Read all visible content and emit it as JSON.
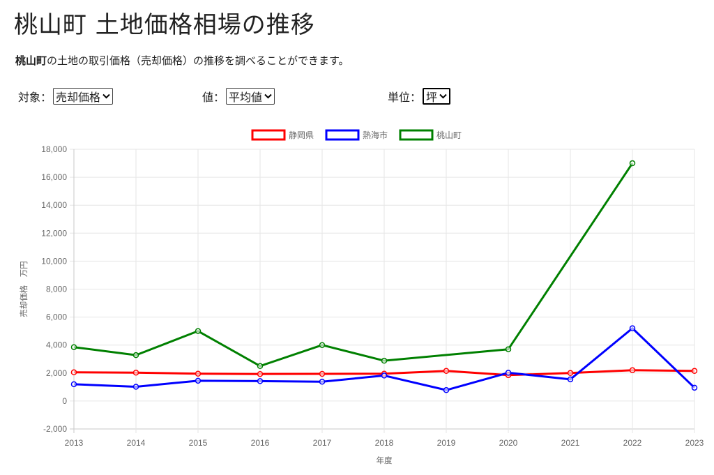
{
  "page": {
    "title": "桃山町 土地価格相場の推移",
    "intro_bold": "桃山町",
    "intro_rest": "の土地の取引価格（売却価格）の推移を調べることができます。"
  },
  "controls": {
    "target": {
      "label": "対象：",
      "value": "売却価格"
    },
    "value": {
      "label": "値：",
      "value": "平均値"
    },
    "unit": {
      "label": "単位：",
      "value": "坪"
    }
  },
  "chart_data": {
    "type": "line",
    "x": [
      "2013",
      "2014",
      "2015",
      "2016",
      "2017",
      "2018",
      "2019",
      "2020",
      "2021",
      "2022",
      "2023"
    ],
    "xlabel": "年度",
    "ylabel": "売却価格　万円",
    "ylim": [
      -2000,
      18000
    ],
    "ytick_step": 2000,
    "grid": true,
    "legend_position": "top-center",
    "series": [
      {
        "name": "静岡県",
        "color": "#ff0000",
        "values": [
          2050,
          2030,
          1950,
          1930,
          1940,
          1950,
          2150,
          1850,
          2000,
          2200,
          2150
        ]
      },
      {
        "name": "熱海市",
        "color": "#0000ff",
        "values": [
          1200,
          1020,
          1450,
          1420,
          1380,
          1820,
          780,
          2020,
          1550,
          5200,
          950
        ]
      },
      {
        "name": "桃山町",
        "color": "#008000",
        "values": [
          3850,
          3280,
          5000,
          2500,
          4000,
          2880,
          null,
          3700,
          null,
          17000,
          null
        ]
      }
    ]
  }
}
